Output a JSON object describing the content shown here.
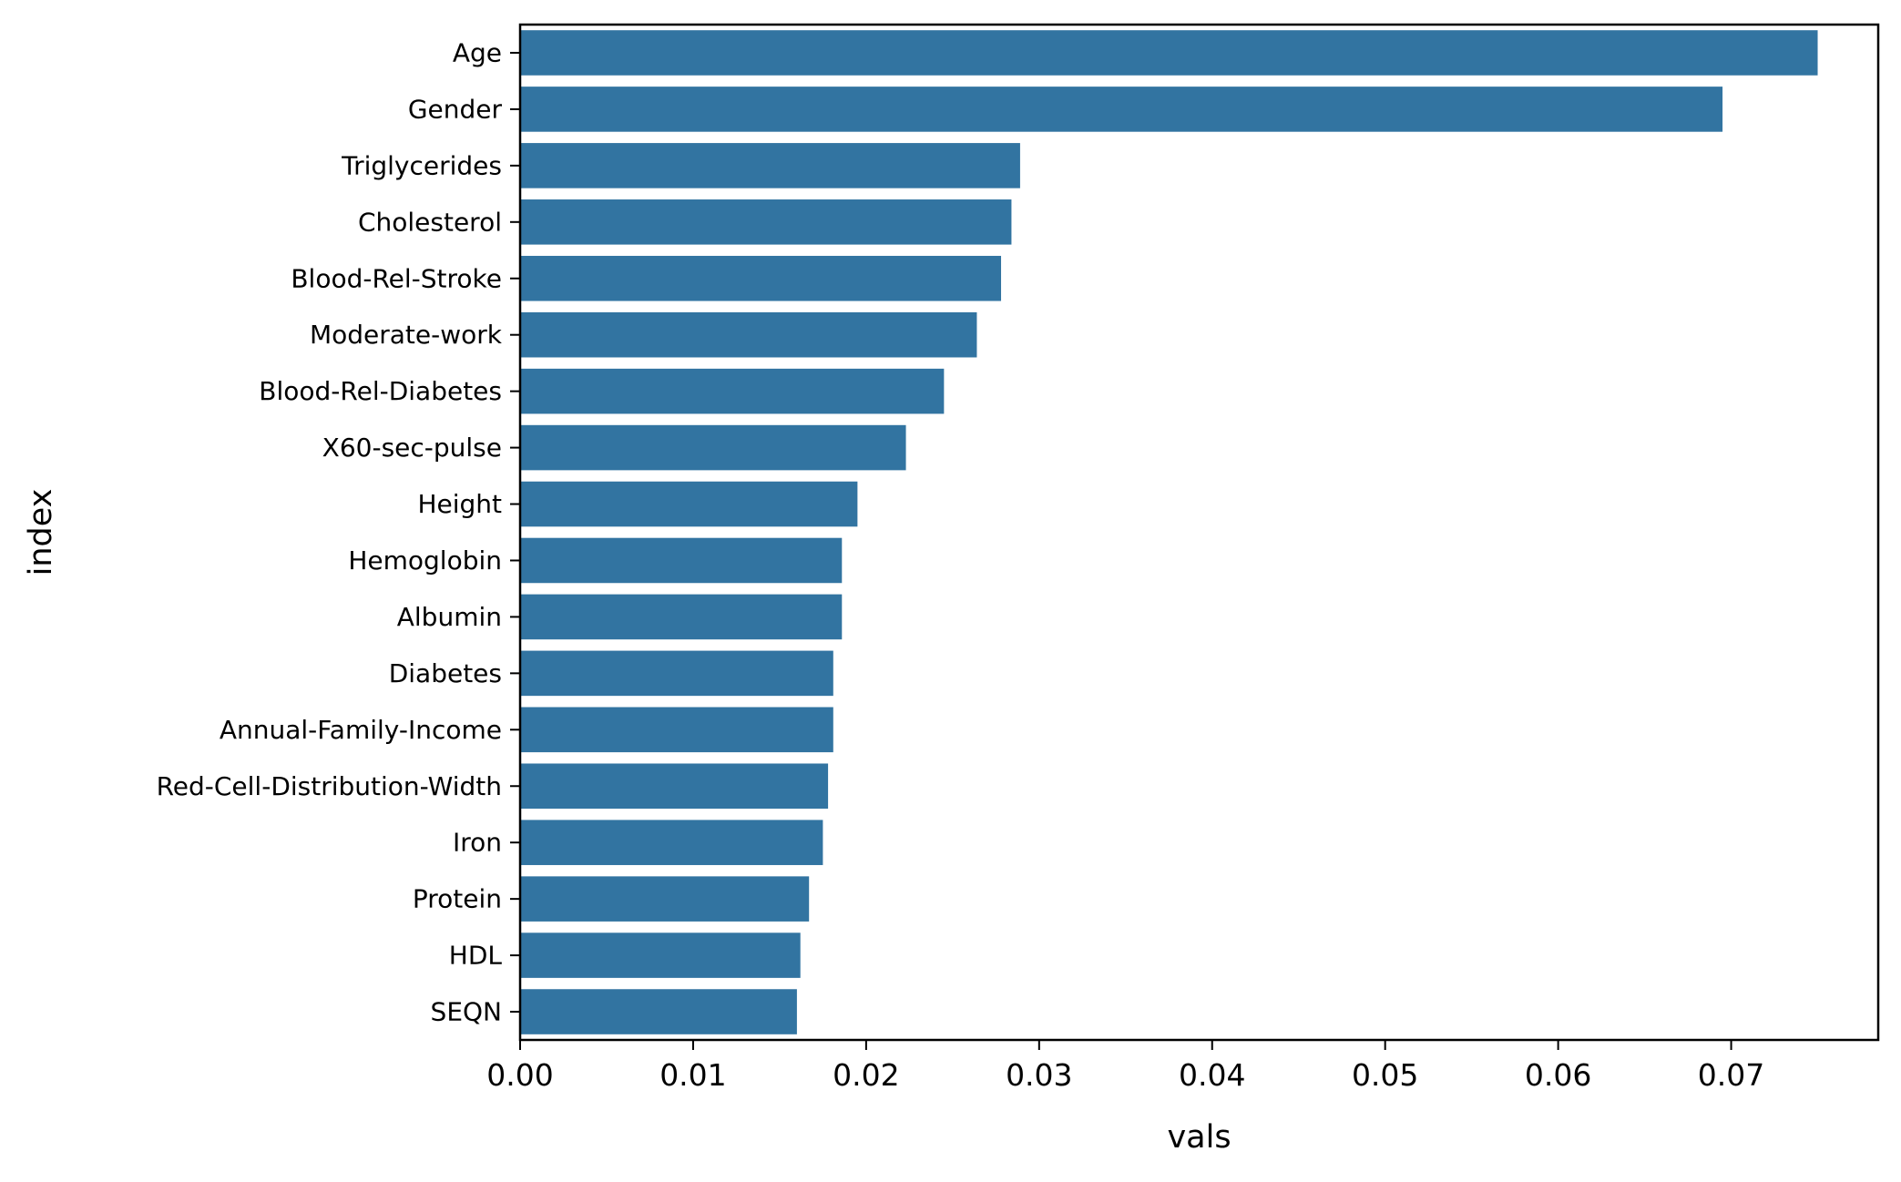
{
  "chart_data": {
    "type": "bar",
    "orientation": "horizontal",
    "title": "",
    "xlabel": "vals",
    "ylabel": "index",
    "xlim": [
      0.0,
      0.0785
    ],
    "x_ticks": [
      0.0,
      0.01,
      0.02,
      0.03,
      0.04,
      0.05,
      0.06,
      0.07
    ],
    "x_tick_labels": [
      "0.00",
      "0.01",
      "0.02",
      "0.03",
      "0.04",
      "0.05",
      "0.06",
      "0.07"
    ],
    "grid": false,
    "legend": "none",
    "bar_color": "#3274a1",
    "categories": [
      "Age",
      "Gender",
      "Triglycerides",
      "Cholesterol",
      "Blood-Rel-Stroke",
      "Moderate-work",
      "Blood-Rel-Diabetes",
      "X60-sec-pulse",
      "Height",
      "Hemoglobin",
      "Albumin",
      "Diabetes",
      "Annual-Family-Income",
      "Red-Cell-Distribution-Width",
      "Iron",
      "Protein",
      "HDL",
      "SEQN"
    ],
    "values": [
      0.075,
      0.0695,
      0.0289,
      0.0284,
      0.0278,
      0.0264,
      0.0245,
      0.0223,
      0.0195,
      0.0186,
      0.0186,
      0.0181,
      0.0181,
      0.0178,
      0.0175,
      0.0167,
      0.0162,
      0.016
    ]
  }
}
